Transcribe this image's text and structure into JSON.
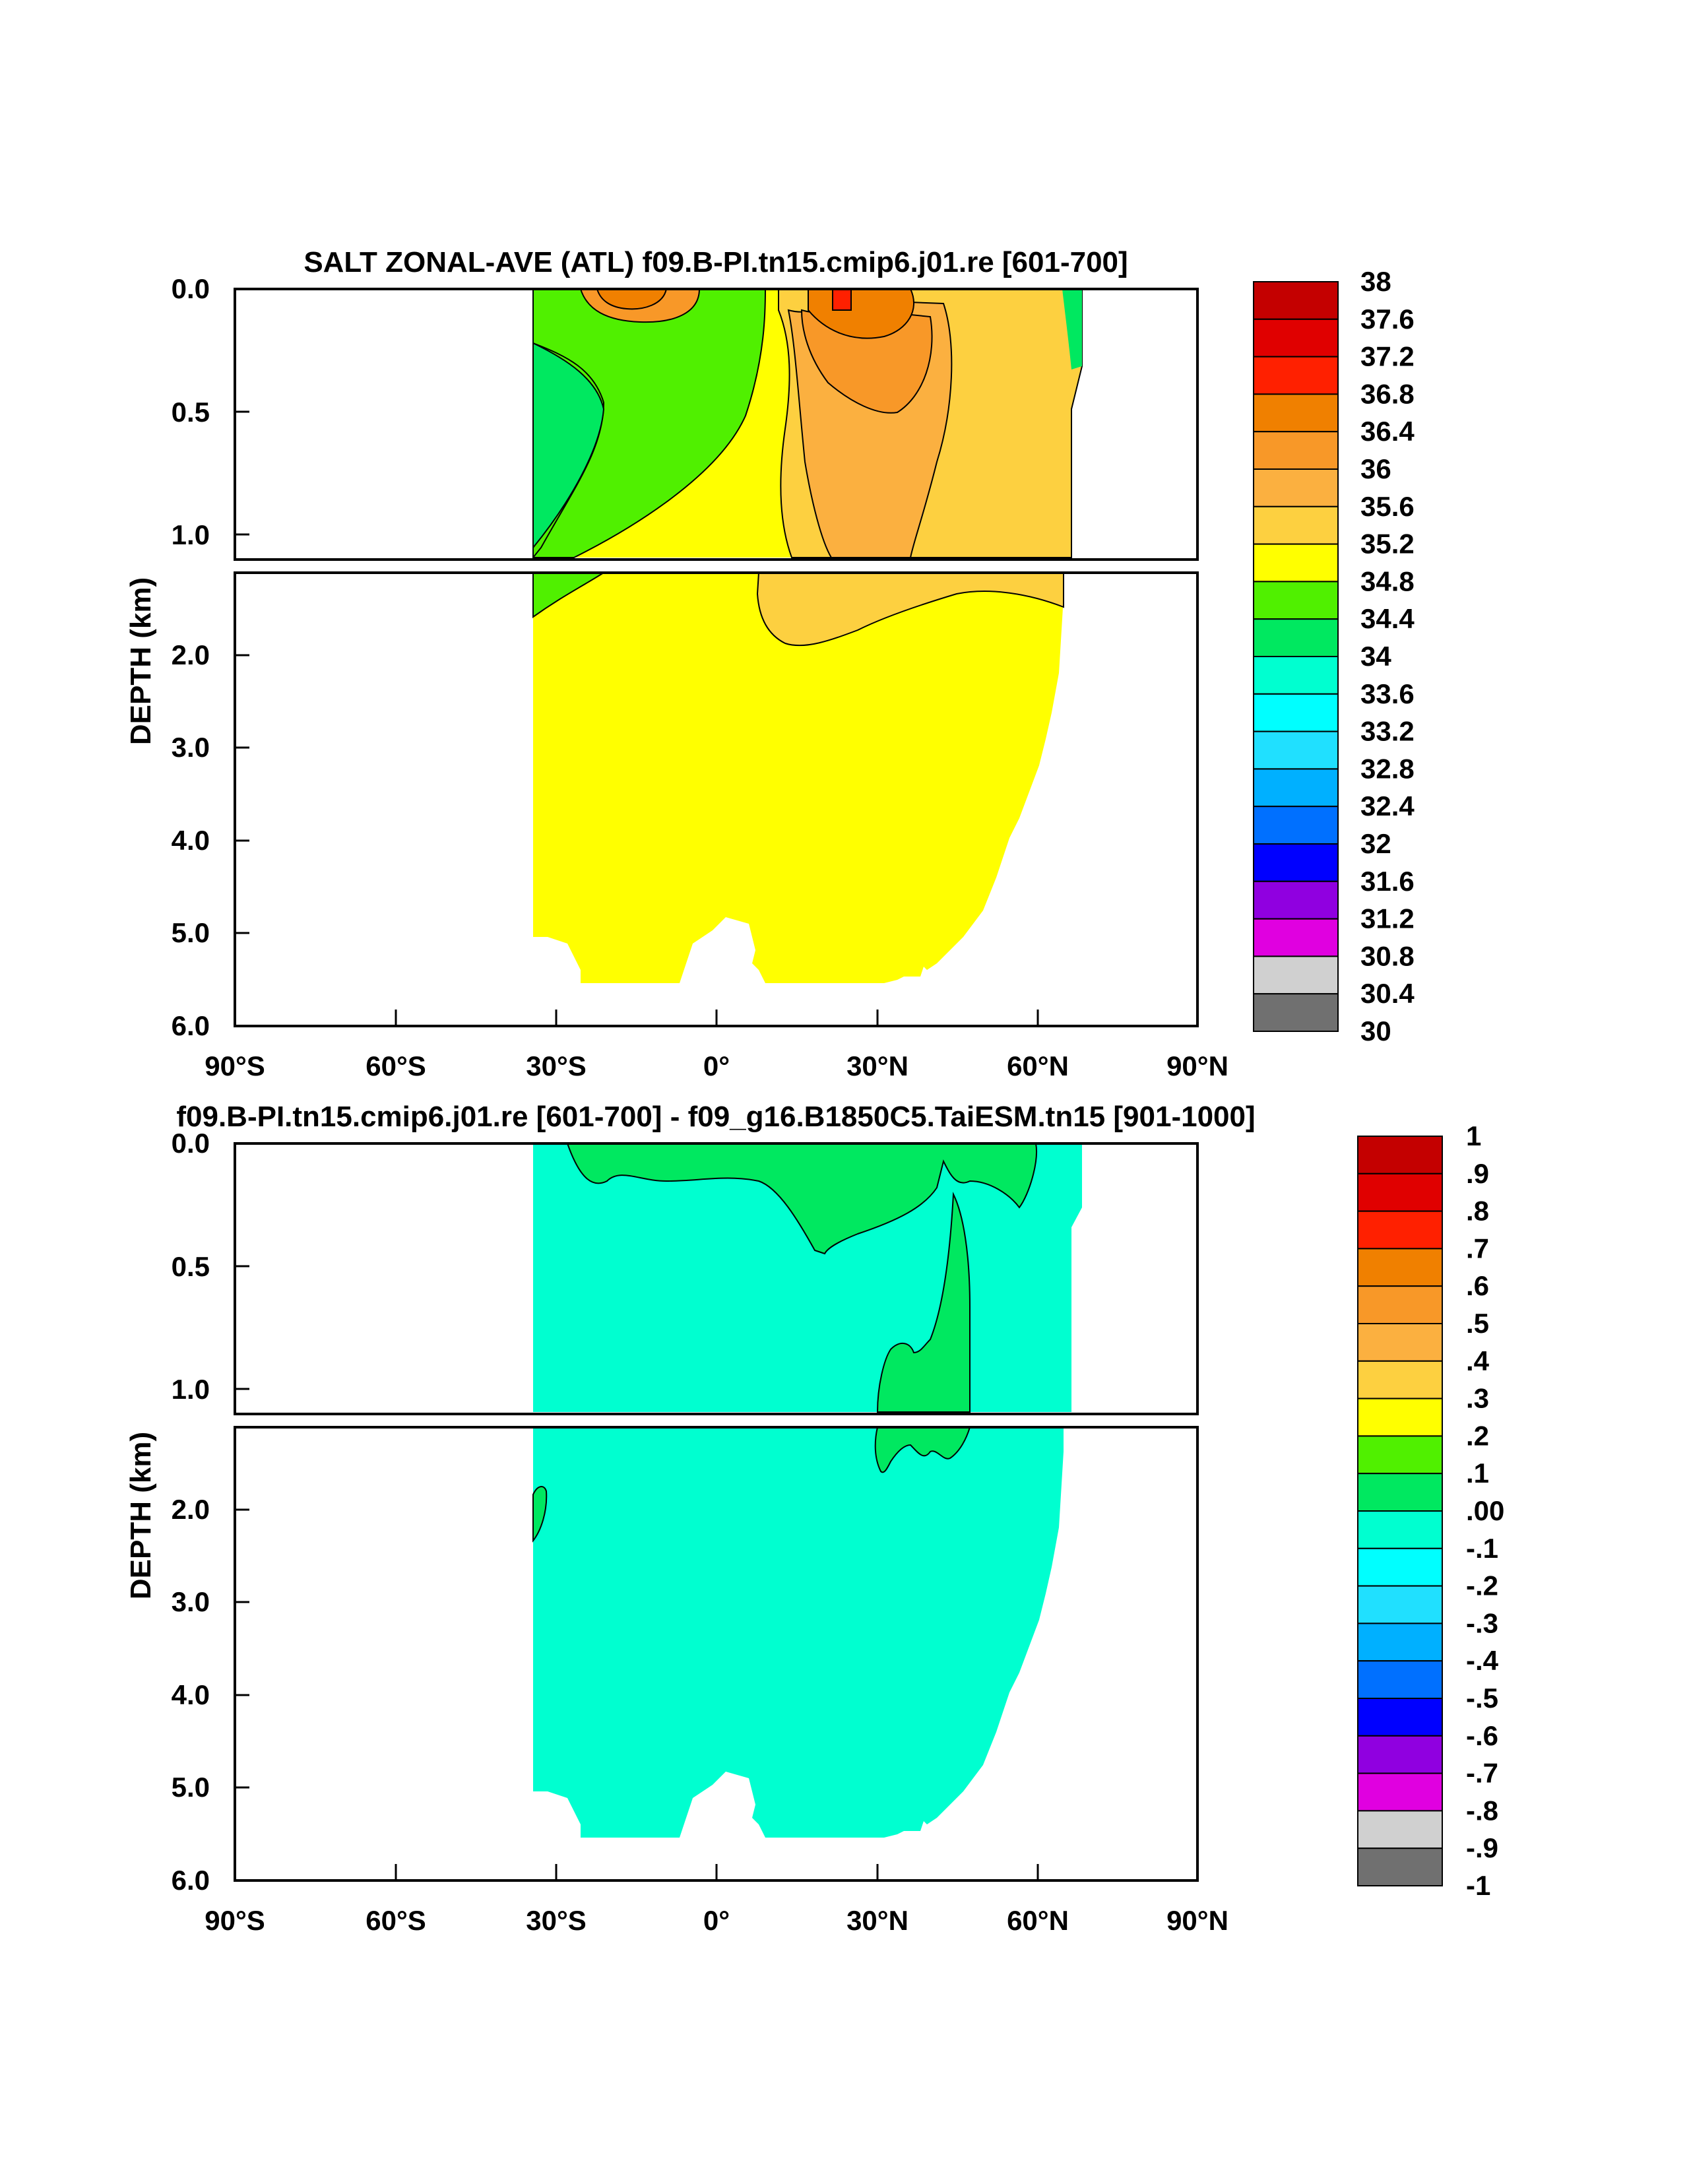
{
  "chart_data": [
    {
      "type": "heatmap",
      "title": "SALT ZONAL-AVE (ATL) f09.B-PI.tn15.cmip6.j01.re [601-700]",
      "ylabel": "DEPTH (km)",
      "xlabel": "",
      "x_range": [
        -90,
        90
      ],
      "y_range_km": [
        0,
        6
      ],
      "y_split_km": 1.1,
      "x_ticks": [
        "90°S",
        "60°S",
        "30°S",
        "0°",
        "30°N",
        "60°N",
        "90°N"
      ],
      "y_ticks": [
        "0.0",
        "0.5",
        "1.0",
        "2.0",
        "3.0",
        "4.0",
        "5.0",
        "6.0"
      ],
      "colorbar": {
        "labels": [
          "38",
          "37.6",
          "37.2",
          "36.8",
          "36.4",
          "36",
          "35.6",
          "35.2",
          "34.8",
          "34.4",
          "34",
          "33.6",
          "33.2",
          "32.8",
          "32.4",
          "32",
          "31.6",
          "31.2",
          "30.8",
          "30.4",
          "30"
        ],
        "colors": [
          "#c40000",
          "#e00000",
          "#ff2000",
          "#f08000",
          "#f89828",
          "#fbb040",
          "#fdd040",
          "#ffff00",
          "#50f000",
          "#00e860",
          "#00ffd0",
          "#00ffff",
          "#20e0ff",
          "#00b0ff",
          "#0070ff",
          "#0000ff",
          "#9000e0",
          "#e000e0",
          "#d0d0d0",
          "#707070"
        ]
      },
      "regions": [
        {
          "lat": [
            -34,
            66
          ],
          "depth_km": [
            0,
            5.4
          ],
          "value": 34.9
        },
        {
          "lat": [
            -34,
            -10
          ],
          "depth_km": [
            0.3,
            1.5
          ],
          "value": 34.6
        },
        {
          "lat": [
            8,
            48
          ],
          "depth_km": [
            0.15,
            1.9
          ],
          "value": 35.4
        },
        {
          "lat": [
            15,
            40
          ],
          "depth_km": [
            0.05,
            0.5
          ],
          "value": 35.9
        },
        {
          "lat": [
            -22,
            -8
          ],
          "depth_km": [
            0,
            0.1
          ],
          "value": 36.2
        },
        {
          "lat": [
            24,
            27
          ],
          "depth_km": [
            0,
            0.08
          ],
          "value": 37.0
        }
      ]
    },
    {
      "type": "heatmap",
      "title": "f09.B-PI.tn15.cmip6.j01.re [601-700] - f09_g16.B1850C5.TaiESM.tn15 [901-1000]",
      "ylabel": "DEPTH (km)",
      "xlabel": "",
      "x_range": [
        -90,
        90
      ],
      "y_range_km": [
        0,
        6
      ],
      "y_split_km": 1.1,
      "x_ticks": [
        "90°S",
        "60°S",
        "30°S",
        "0°",
        "30°N",
        "60°N",
        "90°N"
      ],
      "y_ticks": [
        "0.0",
        "0.5",
        "1.0",
        "2.0",
        "3.0",
        "4.0",
        "5.0",
        "6.0"
      ],
      "colorbar": {
        "labels": [
          "1",
          ".9",
          ".8",
          ".7",
          ".6",
          ".5",
          ".4",
          ".3",
          ".2",
          ".1",
          ".00",
          "-.1",
          "-.2",
          "-.3",
          "-.4",
          "-.5",
          "-.6",
          "-.7",
          "-.8",
          "-.9",
          "-1"
        ],
        "colors": [
          "#c40000",
          "#e00000",
          "#ff2000",
          "#f08000",
          "#f89828",
          "#fbb040",
          "#fdd040",
          "#ffff00",
          "#50f000",
          "#00e860",
          "#00ffd0",
          "#00ffff",
          "#20e0ff",
          "#00b0ff",
          "#0070ff",
          "#0000ff",
          "#9000e0",
          "#e000e0",
          "#d0d0d0",
          "#707070"
        ]
      },
      "regions": [
        {
          "lat": [
            -34,
            69
          ],
          "depth_km": [
            0,
            5.4
          ],
          "value": -0.05
        },
        {
          "lat": [
            -34,
            58
          ],
          "depth_km": [
            0,
            0.45
          ],
          "value": 0.05
        },
        {
          "lat": [
            31,
            48
          ],
          "depth_km": [
            0.2,
            1.9
          ],
          "value": 0.05
        }
      ]
    }
  ]
}
